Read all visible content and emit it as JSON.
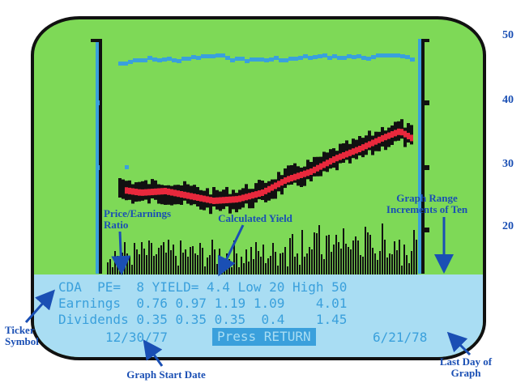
{
  "right_axis": {
    "labels": [
      "50",
      "40",
      "30",
      "20"
    ]
  },
  "screen": {
    "line1": "CDA  PE=  8 YIELD= 4.4 Low 20 High 50",
    "line2": "Earnings  0.76 0.97 1.19 1.09    4.01",
    "line3": "Dividends 0.35 0.35 0.35  0.4    1.45",
    "start_date": "12/30/77",
    "press_return": "Press RETURN",
    "end_date": "6/21/78"
  },
  "annotations": {
    "pe_ratio": "Price/Earnings Ratio",
    "calc_yield": "Calculated Yield",
    "graph_range": "Graph Range Increments of Ten",
    "ticker": "Ticker Symbol",
    "start_date": "Graph Start Date",
    "last_day": "Last Day of Graph"
  },
  "colors": {
    "screen_green": "#7ed957",
    "screen_blue": "#a9ddf3",
    "text_blue": "#3aa0dc",
    "price_red": "#e8283c",
    "annotation_blue": "#1a4fb4"
  }
}
